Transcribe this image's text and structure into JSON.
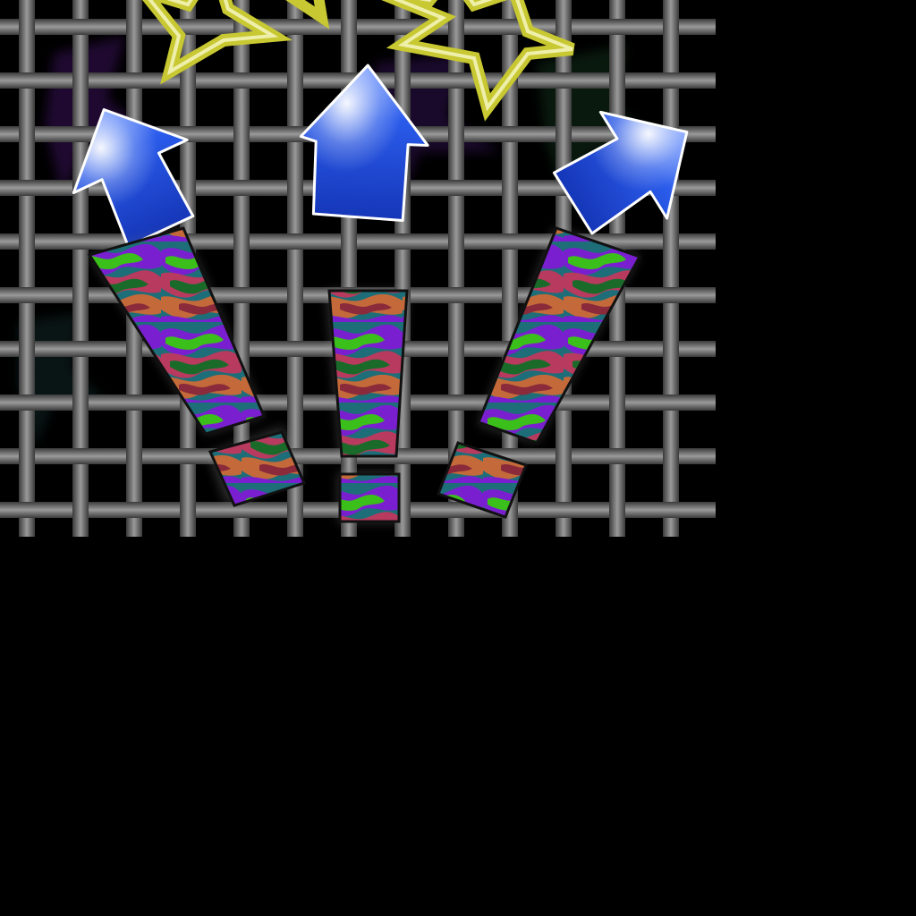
{
  "scene": {
    "background_color": "#000000",
    "grid_color": "#5a5a5a",
    "grid_highlight": "#9a9a9a",
    "arrow_color": "#1f4fd6",
    "arrow_highlight": "#e8f0ff",
    "star_color": "#c8c832",
    "camo_colors": [
      "#7a1fd0",
      "#3bbf1a",
      "#1a6b2a",
      "#b83a5e",
      "#1d6e78",
      "#c46a3a",
      "#8a2a3a"
    ],
    "icons": [
      "woven-grid-icon",
      "star-outline-icon",
      "up-arrow-icon",
      "exclamation-mark-icon"
    ]
  }
}
